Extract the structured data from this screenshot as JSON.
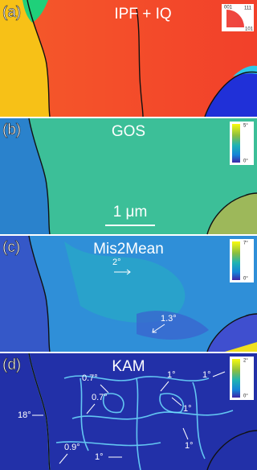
{
  "panels": [
    {
      "label": "(a)",
      "title": "IPF + IQ",
      "legend": [
        "001",
        "111",
        "101"
      ]
    },
    {
      "label": "(b)",
      "title": "GOS",
      "colorbar": [
        "5°",
        "0°"
      ],
      "scale_bar": "1 μm"
    },
    {
      "label": "(c)",
      "title": "Mis2Mean",
      "colorbar": [
        "7°",
        "0°"
      ],
      "annotations": [
        "2°",
        "1.3°"
      ]
    },
    {
      "label": "(d)",
      "title": "KAM",
      "colorbar": [
        "2°",
        "0°"
      ],
      "annotations": [
        "0.7°",
        "1°",
        "1°",
        "0.7°",
        "1°",
        "18°",
        "1°",
        "0.9°",
        "1°"
      ]
    }
  ]
}
